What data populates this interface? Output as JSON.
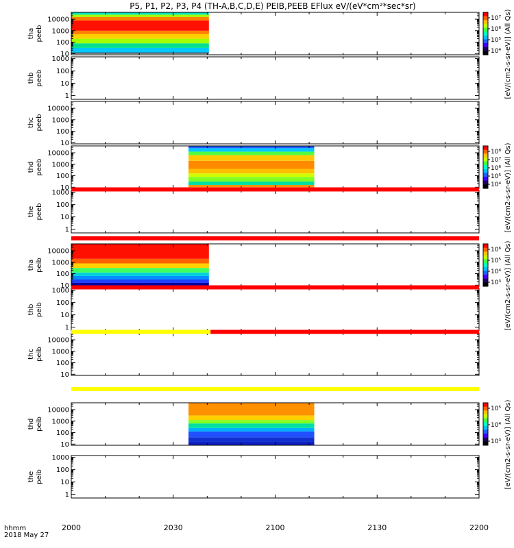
{
  "chart_data": {
    "type": "heatmap",
    "title": "P5, P1, P2, P3, P4 (TH-A,B,C,D,E) PEIB,PEEB EFlux eV/(eV*cm²*sec*sr)",
    "x_ticks": [
      "2000",
      "2030",
      "2100",
      "2130",
      "2200"
    ],
    "x_start_minutes": 0,
    "x_end_minutes": 120,
    "footer": {
      "line1": "hhmm",
      "line2": "2018 May 27"
    },
    "panels": [
      {
        "probe": "tha",
        "product": "peeb",
        "y_ticks": [
          "10000",
          "1000",
          "100",
          "10"
        ],
        "yrange_log": [
          0.9,
          4.6
        ],
        "data_minutes": [
          0,
          40.5
        ],
        "colorbar": "cb1",
        "bands": [
          {
            "from": 1.0,
            "to": 1.1,
            "color": "#111111"
          },
          {
            "from": 1.1,
            "to": 1.5,
            "color": "#00c8ff"
          },
          {
            "from": 1.5,
            "to": 1.9,
            "color": "#00e090"
          },
          {
            "from": 1.9,
            "to": 2.3,
            "color": "#a0ff00"
          },
          {
            "from": 2.3,
            "to": 2.7,
            "color": "#ffd000"
          },
          {
            "from": 2.7,
            "to": 3.0,
            "color": "#ff8000"
          },
          {
            "from": 3.0,
            "to": 3.9,
            "color": "#ff1000"
          },
          {
            "from": 3.9,
            "to": 4.2,
            "color": "#ff8000"
          },
          {
            "from": 4.2,
            "to": 4.4,
            "color": "#a0ff00"
          },
          {
            "from": 4.4,
            "to": 4.6,
            "color": "#00e0c0"
          }
        ]
      },
      {
        "probe": "thb",
        "product": "peeb",
        "y_ticks": [
          "1000",
          "100",
          "10",
          "1"
        ],
        "yrange_log": [
          -0.3,
          3.15
        ],
        "data_minutes": null
      },
      {
        "probe": "thc",
        "product": "peeb",
        "y_ticks": [
          "10000",
          "1000",
          "100",
          "10"
        ],
        "yrange_log": [
          0.9,
          4.6
        ],
        "data_minutes": null
      },
      {
        "probe": "thd",
        "product": "peeb",
        "y_ticks": [
          "10000",
          "1000",
          "100",
          "10"
        ],
        "yrange_log": [
          0.9,
          4.6
        ],
        "data_minutes": [
          34.5,
          71.5
        ],
        "colorbar": "cb2",
        "bands": [
          {
            "from": 1.0,
            "to": 1.2,
            "color": "#ff9000"
          },
          {
            "from": 1.2,
            "to": 1.5,
            "color": "#00e0a0"
          },
          {
            "from": 1.5,
            "to": 1.9,
            "color": "#80ff20"
          },
          {
            "from": 1.9,
            "to": 2.2,
            "color": "#d0ff00"
          },
          {
            "from": 2.2,
            "to": 2.6,
            "color": "#ffc000"
          },
          {
            "from": 2.6,
            "to": 3.3,
            "color": "#ff8a00"
          },
          {
            "from": 3.3,
            "to": 3.8,
            "color": "#ffc800"
          },
          {
            "from": 3.8,
            "to": 4.1,
            "color": "#50ff40"
          },
          {
            "from": 4.1,
            "to": 4.4,
            "color": "#00c8ff"
          },
          {
            "from": 4.4,
            "to": 4.6,
            "color": "#2060ff"
          }
        ]
      },
      {
        "probe": "the",
        "product": "peeb",
        "y_ticks": [
          "1000",
          "100",
          "10",
          "1"
        ],
        "yrange_log": [
          -0.3,
          3.15
        ],
        "data_minutes": null
      },
      {
        "probe": "tha",
        "product": "peib",
        "y_ticks": [
          "10000",
          "1000",
          "100",
          "10"
        ],
        "yrange_log": [
          0.9,
          4.6
        ],
        "data_minutes": [
          0,
          40.5
        ],
        "colorbar": "cb3",
        "bands": [
          {
            "from": 0.9,
            "to": 1.2,
            "color": "#0000a0"
          },
          {
            "from": 1.2,
            "to": 1.5,
            "color": "#2040ff"
          },
          {
            "from": 1.5,
            "to": 1.8,
            "color": "#0090ff"
          },
          {
            "from": 1.8,
            "to": 2.1,
            "color": "#00d0e0"
          },
          {
            "from": 2.1,
            "to": 2.5,
            "color": "#40ff60"
          },
          {
            "from": 2.5,
            "to": 2.9,
            "color": "#ffd000"
          },
          {
            "from": 2.9,
            "to": 3.3,
            "color": "#ff6000"
          },
          {
            "from": 3.3,
            "to": 4.6,
            "color": "#ff1000"
          }
        ]
      },
      {
        "probe": "thb",
        "product": "peib",
        "y_ticks": [
          "1000",
          "100",
          "10",
          "1"
        ],
        "yrange_log": [
          -0.3,
          3.15
        ],
        "data_minutes": null
      },
      {
        "probe": "thc",
        "product": "peib",
        "y_ticks": [
          "10000",
          "1000",
          "100",
          "10"
        ],
        "yrange_log": [
          0.9,
          4.6
        ],
        "data_minutes": null
      },
      {
        "probe": "thd",
        "product": "peib",
        "y_ticks": [
          "10000",
          "1000",
          "100",
          "10"
        ],
        "yrange_log": [
          0.9,
          4.6
        ],
        "data_minutes": [
          34.5,
          71.5
        ],
        "colorbar": "cb4",
        "bands": [
          {
            "from": 0.9,
            "to": 1.2,
            "color": "#1020c0"
          },
          {
            "from": 1.2,
            "to": 1.6,
            "color": "#1030d0"
          },
          {
            "from": 1.6,
            "to": 2.1,
            "color": "#2050ff"
          },
          {
            "from": 2.1,
            "to": 2.4,
            "color": "#00b0ff"
          },
          {
            "from": 2.4,
            "to": 2.8,
            "color": "#00e0a0"
          },
          {
            "from": 2.8,
            "to": 3.1,
            "color": "#80ff20"
          },
          {
            "from": 3.1,
            "to": 3.5,
            "color": "#ffd000"
          },
          {
            "from": 3.5,
            "to": 4.6,
            "color": "#ff9000"
          }
        ]
      },
      {
        "probe": "the",
        "product": "peib",
        "y_ticks": [
          "1000",
          "100",
          "10",
          "1"
        ],
        "yrange_log": [
          -0.3,
          3.15
        ],
        "data_minutes": null
      }
    ],
    "status_bars": [
      {
        "between": [
          4,
          5
        ],
        "segments": [
          {
            "from": 0,
            "to": 120,
            "color": "#ff0000"
          }
        ]
      },
      {
        "between": [
          5,
          6
        ],
        "segments": [
          {
            "from": 0,
            "to": 120,
            "color": "#ff0000"
          }
        ]
      },
      {
        "between": [
          6,
          7
        ],
        "segments": [
          {
            "from": 0,
            "to": 120,
            "color": "#ff0000"
          }
        ]
      },
      {
        "between": [
          7,
          8
        ],
        "segments": [
          {
            "from": 0,
            "to": 41,
            "color": "#ffff00"
          },
          {
            "from": 41,
            "to": 120,
            "color": "#ff0000"
          }
        ]
      },
      {
        "between": [
          8,
          9
        ],
        "segments": [
          {
            "from": 0,
            "to": 120,
            "color": "#ffff00"
          }
        ]
      }
    ],
    "colorbars": {
      "cb1": {
        "ticks": [
          "10⁷",
          "10⁶",
          "10⁵",
          "10⁴"
        ],
        "title": "[eV/(cm2-s-sr-eV)] (All Qs)"
      },
      "cb2": {
        "ticks": [
          "10⁸",
          "10⁷",
          "10⁶",
          "10⁵",
          "10⁴"
        ],
        "title": "[eV/(cm2-s-sr-eV)] (All Qs)"
      },
      "cb3": {
        "ticks": [
          "10⁶",
          "10⁵",
          "10⁴",
          "10³"
        ],
        "title": "[eV/(cm2-s-sr-eV)] (All Qs)"
      },
      "cb4": {
        "ticks": [
          "10⁵",
          "10⁴",
          "10³"
        ],
        "title": "[eV/(cm2-s-sr-eV)] (All Qs)"
      }
    }
  }
}
